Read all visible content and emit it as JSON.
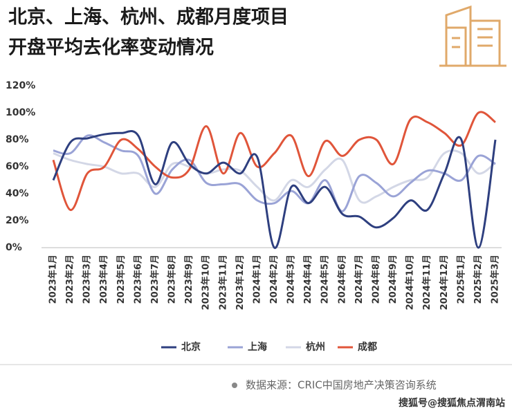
{
  "chart_data": {
    "type": "line",
    "title_lines": [
      "北京、上海、杭州、成都月度项目",
      "开盘平均去化率变动情况"
    ],
    "categories": [
      "2023年1月",
      "2023年2月",
      "2023年3月",
      "2023年4月",
      "2023年5月",
      "2023年6月",
      "2023年7月",
      "2023年8月",
      "2023年9月",
      "2023年10月",
      "2023年11月",
      "2023年12月",
      "2024年1月",
      "2024年2月",
      "2024年3月",
      "2024年4月",
      "2024年5月",
      "2024年6月",
      "2024年7月",
      "2024年8月",
      "2024年9月",
      "2024年10月",
      "2024年11月",
      "2024年12月",
      "2025年1月",
      "2025年2月",
      "2025年3月"
    ],
    "series": [
      {
        "name": "北京",
        "color": "#2e3f7f",
        "values": [
          50,
          78,
          81,
          84,
          85,
          83,
          47,
          78,
          62,
          55,
          63,
          55,
          67,
          0,
          45,
          33,
          45,
          25,
          23,
          15,
          22,
          35,
          28,
          55,
          80,
          0,
          80
        ]
      },
      {
        "name": "上海",
        "color": "#9aa3d6",
        "values": [
          72,
          70,
          83,
          78,
          72,
          68,
          40,
          58,
          65,
          48,
          47,
          47,
          35,
          33,
          42,
          33,
          50,
          27,
          53,
          48,
          38,
          48,
          57,
          55,
          50,
          68,
          62
        ]
      },
      {
        "name": "杭州",
        "color": "#d3d7e6",
        "values": [
          70,
          65,
          62,
          60,
          55,
          55,
          45,
          62,
          60,
          55,
          58,
          57,
          45,
          35,
          50,
          45,
          58,
          65,
          35,
          38,
          45,
          50,
          52,
          70,
          70,
          55,
          63
        ]
      },
      {
        "name": "成都",
        "color": "#e0553a",
        "values": [
          65,
          28,
          55,
          60,
          80,
          73,
          60,
          52,
          58,
          90,
          55,
          85,
          60,
          70,
          83,
          53,
          79,
          68,
          80,
          80,
          62,
          95,
          93,
          85,
          76,
          100,
          93
        ]
      }
    ],
    "ylim": [
      0,
      120
    ],
    "yticks": [
      {
        "value": 0,
        "label": "0%"
      },
      {
        "value": 20,
        "label": "20%"
      },
      {
        "value": 40,
        "label": "40%"
      },
      {
        "value": 60,
        "label": "60%"
      },
      {
        "value": 80,
        "label": "80%"
      },
      {
        "value": 100,
        "label": "100%"
      },
      {
        "value": 120,
        "label": "120%"
      }
    ],
    "grid": false,
    "source": "数据来源：CRIC中国房地产决策咨询系统",
    "credit": "搜狐号@搜狐焦点渭南站"
  }
}
